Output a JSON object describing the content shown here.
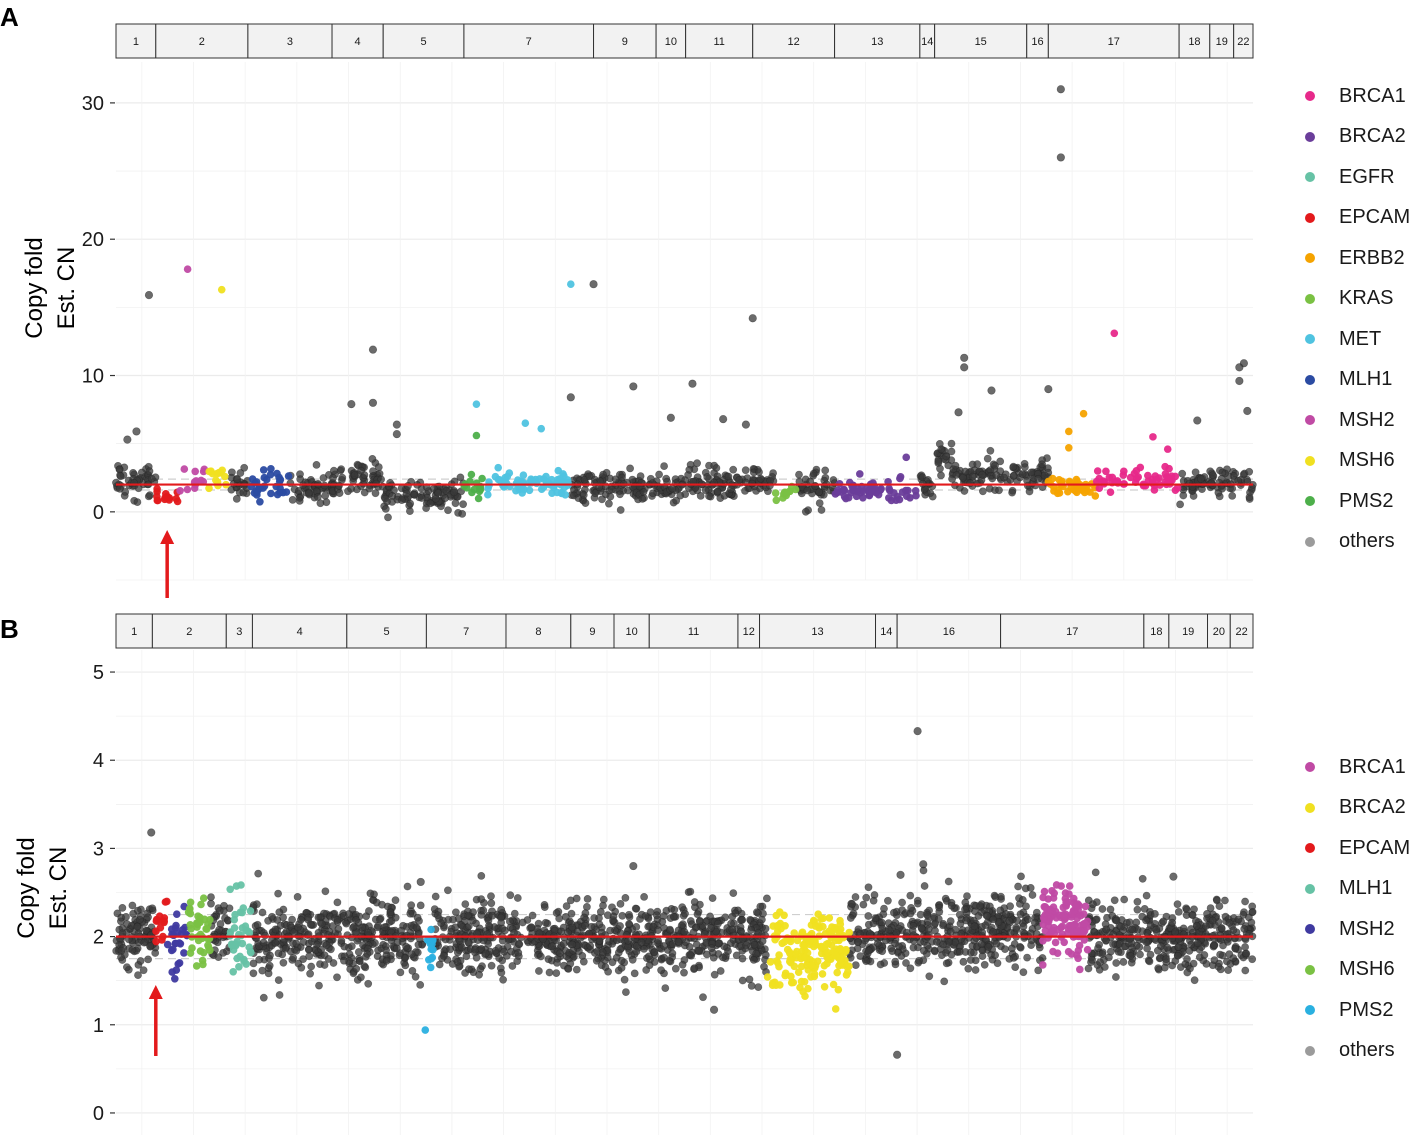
{
  "panels": [
    {
      "letter": "A",
      "chrom_labels": [
        "1",
        "2",
        "3",
        "4",
        "5",
        "7",
        "9",
        "10",
        "11",
        "12",
        "13",
        "14",
        "15",
        "16",
        "17",
        "18",
        "19",
        "22"
      ],
      "chrom_spans": [
        [
          0,
          0.035
        ],
        [
          0.035,
          0.116
        ],
        [
          0.116,
          0.19
        ],
        [
          0.19,
          0.235
        ],
        [
          0.235,
          0.306
        ],
        [
          0.306,
          0.42
        ],
        [
          0.42,
          0.475
        ],
        [
          0.475,
          0.501
        ],
        [
          0.501,
          0.56
        ],
        [
          0.56,
          0.632
        ],
        [
          0.632,
          0.707
        ],
        [
          0.707,
          0.72
        ],
        [
          0.72,
          0.801
        ],
        [
          0.801,
          0.82
        ],
        [
          0.82,
          0.935
        ],
        [
          0.935,
          0.962
        ],
        [
          0.962,
          0.983
        ],
        [
          0.983,
          1.0
        ]
      ],
      "y_ticks": [
        0,
        10,
        20,
        30
      ],
      "ylim": [
        -5,
        33
      ],
      "baseline": 2,
      "gene_regions": [
        {
          "gene": "EPCAM",
          "start": 0.035,
          "end": 0.055,
          "mean": 1.2,
          "sd": 0.35,
          "n": 14
        },
        {
          "gene": "MSH2",
          "start": 0.055,
          "end": 0.078,
          "mean": 2.3,
          "sd": 0.5,
          "n": 12
        },
        {
          "gene": "MSH6",
          "start": 0.078,
          "end": 0.1,
          "mean": 2.6,
          "sd": 0.5,
          "n": 14
        },
        {
          "gene": "MLH1",
          "start": 0.116,
          "end": 0.152,
          "mean": 2.0,
          "sd": 0.7,
          "n": 30
        },
        {
          "gene": "PMS2",
          "start": 0.306,
          "end": 0.325,
          "mean": 1.8,
          "sd": 0.4,
          "n": 14
        },
        {
          "gene": "MET",
          "start": 0.325,
          "end": 0.4,
          "mean": 2.1,
          "sd": 0.45,
          "n": 70
        },
        {
          "gene": "KRAS",
          "start": 0.58,
          "end": 0.6,
          "mean": 1.6,
          "sd": 0.3,
          "n": 12
        },
        {
          "gene": "BRCA2",
          "start": 0.632,
          "end": 0.707,
          "mean": 1.6,
          "sd": 0.4,
          "n": 60
        },
        {
          "gene": "ERBB2",
          "start": 0.82,
          "end": 0.862,
          "mean": 1.9,
          "sd": 0.35,
          "n": 40
        },
        {
          "gene": "BRCA1",
          "start": 0.862,
          "end": 0.935,
          "mean": 2.3,
          "sd": 0.45,
          "n": 55
        }
      ],
      "bg_levels": [
        {
          "start": 0.0,
          "end": 0.035,
          "mean": 2.2
        },
        {
          "start": 0.1,
          "end": 0.116,
          "mean": 2.0
        },
        {
          "start": 0.152,
          "end": 0.19,
          "mean": 1.9
        },
        {
          "start": 0.19,
          "end": 0.235,
          "mean": 2.3
        },
        {
          "start": 0.235,
          "end": 0.306,
          "mean": 1.2
        },
        {
          "start": 0.4,
          "end": 0.42,
          "mean": 2.1
        },
        {
          "start": 0.42,
          "end": 0.501,
          "mean": 1.8
        },
        {
          "start": 0.501,
          "end": 0.58,
          "mean": 2.2
        },
        {
          "start": 0.6,
          "end": 0.632,
          "mean": 1.8
        },
        {
          "start": 0.707,
          "end": 0.72,
          "mean": 2.0
        },
        {
          "start": 0.72,
          "end": 0.735,
          "mean": 4.0
        },
        {
          "start": 0.735,
          "end": 0.82,
          "mean": 2.7
        },
        {
          "start": 0.935,
          "end": 1.0,
          "mean": 2.0
        }
      ],
      "outliers": [
        {
          "x": 0.029,
          "y": 15.9,
          "gene": "others"
        },
        {
          "x": 0.063,
          "y": 17.8,
          "gene": "MSH2"
        },
        {
          "x": 0.093,
          "y": 16.3,
          "gene": "MSH6"
        },
        {
          "x": 0.4,
          "y": 16.7,
          "gene": "MET"
        },
        {
          "x": 0.42,
          "y": 16.7,
          "gene": "others"
        },
        {
          "x": 0.56,
          "y": 14.2,
          "gene": "others"
        },
        {
          "x": 0.226,
          "y": 11.9,
          "gene": "others"
        },
        {
          "x": 0.207,
          "y": 7.9,
          "gene": "others"
        },
        {
          "x": 0.226,
          "y": 8.0,
          "gene": "others"
        },
        {
          "x": 0.317,
          "y": 7.9,
          "gene": "MET"
        },
        {
          "x": 0.317,
          "y": 5.6,
          "gene": "PMS2"
        },
        {
          "x": 0.36,
          "y": 6.5,
          "gene": "MET"
        },
        {
          "x": 0.374,
          "y": 6.1,
          "gene": "MET"
        },
        {
          "x": 0.4,
          "y": 8.4,
          "gene": "others"
        },
        {
          "x": 0.455,
          "y": 9.2,
          "gene": "others"
        },
        {
          "x": 0.507,
          "y": 9.4,
          "gene": "others"
        },
        {
          "x": 0.746,
          "y": 11.3,
          "gene": "others"
        },
        {
          "x": 0.746,
          "y": 10.6,
          "gene": "others"
        },
        {
          "x": 0.741,
          "y": 7.3,
          "gene": "others"
        },
        {
          "x": 0.77,
          "y": 8.9,
          "gene": "others"
        },
        {
          "x": 0.82,
          "y": 9.0,
          "gene": "others"
        },
        {
          "x": 0.831,
          "y": 31.0,
          "gene": "others"
        },
        {
          "x": 0.831,
          "y": 26.0,
          "gene": "others"
        },
        {
          "x": 0.878,
          "y": 13.1,
          "gene": "BRCA1"
        },
        {
          "x": 0.851,
          "y": 7.2,
          "gene": "ERBB2"
        },
        {
          "x": 0.838,
          "y": 5.9,
          "gene": "ERBB2"
        },
        {
          "x": 0.838,
          "y": 4.7,
          "gene": "ERBB2"
        },
        {
          "x": 0.912,
          "y": 5.5,
          "gene": "BRCA1"
        },
        {
          "x": 0.925,
          "y": 4.6,
          "gene": "BRCA1"
        },
        {
          "x": 0.695,
          "y": 4.0,
          "gene": "BRCA2"
        },
        {
          "x": 0.992,
          "y": 10.9,
          "gene": "others"
        },
        {
          "x": 0.988,
          "y": 10.6,
          "gene": "others"
        },
        {
          "x": 0.988,
          "y": 9.6,
          "gene": "others"
        },
        {
          "x": 0.995,
          "y": 7.4,
          "gene": "others"
        },
        {
          "x": 0.951,
          "y": 6.7,
          "gene": "others"
        },
        {
          "x": 0.488,
          "y": 6.9,
          "gene": "others"
        },
        {
          "x": 0.534,
          "y": 6.8,
          "gene": "others"
        },
        {
          "x": 0.554,
          "y": 6.4,
          "gene": "others"
        },
        {
          "x": 0.018,
          "y": 5.9,
          "gene": "others"
        },
        {
          "x": 0.01,
          "y": 5.3,
          "gene": "others"
        },
        {
          "x": 0.247,
          "y": 6.4,
          "gene": "others"
        },
        {
          "x": 0.247,
          "y": 5.7,
          "gene": "others"
        }
      ],
      "legend": [
        {
          "label": "BRCA1",
          "color": "#e7298a"
        },
        {
          "label": "BRCA2",
          "color": "#6a3d9a"
        },
        {
          "label": "EGFR",
          "color": "#66c2a5"
        },
        {
          "label": "EPCAM",
          "color": "#e31a1c"
        },
        {
          "label": "ERBB2",
          "color": "#f5a300"
        },
        {
          "label": "KRAS",
          "color": "#7ac143"
        },
        {
          "label": "MET",
          "color": "#4fc3e0"
        },
        {
          "label": "MLH1",
          "color": "#2b4ba2"
        },
        {
          "label": "MSH2",
          "color": "#c04aa4"
        },
        {
          "label": "MSH6",
          "color": "#f0e020"
        },
        {
          "label": "PMS2",
          "color": "#4daf4a"
        },
        {
          "label": "others",
          "color": "#7a7a7a"
        }
      ],
      "arrow_x": 0.045
    },
    {
      "letter": "B",
      "chrom_labels": [
        "1",
        "2",
        "3",
        "4",
        "5",
        "7",
        "8",
        "9",
        "10",
        "11",
        "12",
        "13",
        "14",
        "16",
        "17",
        "18",
        "19",
        "20",
        "22"
      ],
      "chrom_spans": [
        [
          0,
          0.032
        ],
        [
          0.032,
          0.097
        ],
        [
          0.097,
          0.12
        ],
        [
          0.12,
          0.203
        ],
        [
          0.203,
          0.273
        ],
        [
          0.273,
          0.343
        ],
        [
          0.343,
          0.4
        ],
        [
          0.4,
          0.438
        ],
        [
          0.438,
          0.469
        ],
        [
          0.469,
          0.547
        ],
        [
          0.547,
          0.566
        ],
        [
          0.566,
          0.668
        ],
        [
          0.668,
          0.687
        ],
        [
          0.687,
          0.778
        ],
        [
          0.778,
          0.904
        ],
        [
          0.904,
          0.926
        ],
        [
          0.926,
          0.96
        ],
        [
          0.96,
          0.98
        ],
        [
          0.98,
          1.0
        ]
      ],
      "y_ticks": [
        0,
        1,
        2,
        3,
        4,
        5
      ],
      "ylim": [
        -0.25,
        5.25
      ],
      "baseline": 2,
      "gene_regions": [
        {
          "gene": "EPCAM",
          "start": 0.035,
          "end": 0.045,
          "mean": 2.15,
          "sd": 0.18,
          "n": 14
        },
        {
          "gene": "MSH2",
          "start": 0.045,
          "end": 0.063,
          "mean": 1.95,
          "sd": 0.2,
          "n": 26
        },
        {
          "gene": "MSH6",
          "start": 0.063,
          "end": 0.083,
          "mean": 2.1,
          "sd": 0.18,
          "n": 40
        },
        {
          "gene": "MLH1",
          "start": 0.1,
          "end": 0.12,
          "mean": 2.0,
          "sd": 0.22,
          "n": 36
        },
        {
          "gene": "PMS2",
          "start": 0.27,
          "end": 0.28,
          "mean": 1.95,
          "sd": 0.2,
          "n": 14
        },
        {
          "gene": "BRCA2",
          "start": 0.573,
          "end": 0.645,
          "mean": 1.85,
          "sd": 0.2,
          "n": 180
        },
        {
          "gene": "BRCA1",
          "start": 0.815,
          "end": 0.855,
          "mean": 2.15,
          "sd": 0.2,
          "n": 120
        }
      ],
      "bg_levels": [
        {
          "start": 0.0,
          "end": 0.035,
          "mean": 2.0
        },
        {
          "start": 0.083,
          "end": 0.1,
          "mean": 2.0
        },
        {
          "start": 0.12,
          "end": 0.27,
          "mean": 2.0
        },
        {
          "start": 0.28,
          "end": 0.573,
          "mean": 2.0
        },
        {
          "start": 0.645,
          "end": 0.815,
          "mean": 2.05
        },
        {
          "start": 0.855,
          "end": 1.0,
          "mean": 1.98
        }
      ],
      "outliers": [
        {
          "x": 0.031,
          "y": 3.18,
          "gene": "others"
        },
        {
          "x": 0.705,
          "y": 4.33,
          "gene": "others"
        },
        {
          "x": 0.69,
          "y": 2.7,
          "gene": "others"
        },
        {
          "x": 0.71,
          "y": 2.82,
          "gene": "others"
        },
        {
          "x": 0.272,
          "y": 0.94,
          "gene": "PMS2"
        },
        {
          "x": 0.687,
          "y": 0.66,
          "gene": "others"
        },
        {
          "x": 0.526,
          "y": 1.17,
          "gene": "others"
        },
        {
          "x": 0.455,
          "y": 2.8,
          "gene": "others"
        },
        {
          "x": 0.268,
          "y": 2.62,
          "gene": "others"
        },
        {
          "x": 0.93,
          "y": 2.68,
          "gene": "others"
        },
        {
          "x": 0.633,
          "y": 1.18,
          "gene": "BRCA2"
        }
      ],
      "legend": [
        {
          "label": "BRCA1",
          "color": "#c04aa4"
        },
        {
          "label": "BRCA2",
          "color": "#f0e020"
        },
        {
          "label": "EPCAM",
          "color": "#e31a1c"
        },
        {
          "label": "MLH1",
          "color": "#66c2a5"
        },
        {
          "label": "MSH2",
          "color": "#3f3aa0"
        },
        {
          "label": "MSH6",
          "color": "#7ac143"
        },
        {
          "label": "PMS2",
          "color": "#2ab0e0"
        },
        {
          "label": "others",
          "color": "#7a7a7a"
        }
      ],
      "arrow_x": 0.035
    }
  ],
  "ylabel_line1": "Copy fold",
  "ylabel_line2": "Est. CN",
  "colors": {
    "baseline": "#e31a1c",
    "others": "#3a3a3a",
    "arrow": "#e31a1c"
  }
}
